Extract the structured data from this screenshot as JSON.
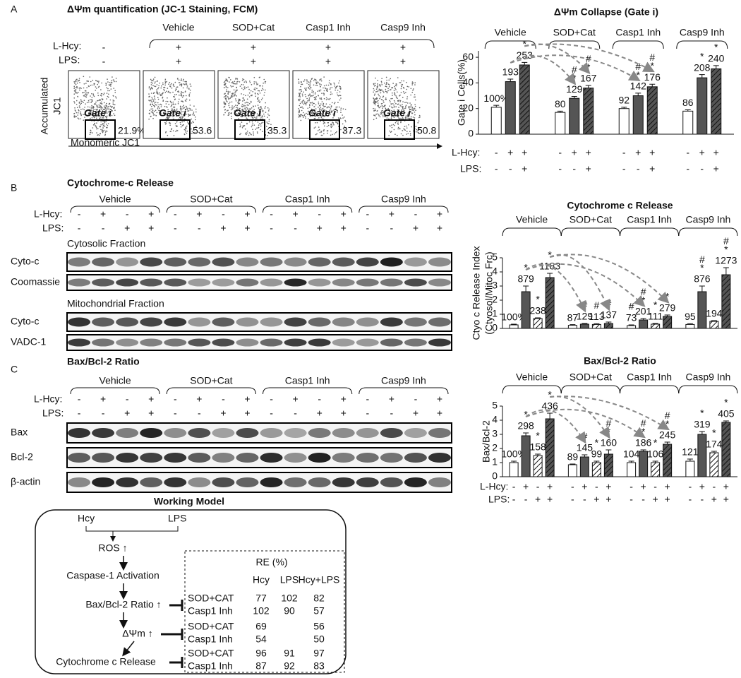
{
  "panel_a": {
    "letter": "A",
    "title": "ΔΨm quantification (JC-1 Staining, FCM)",
    "columns": [
      "Vehicle",
      "SOD+Cat",
      "Casp1 Inh",
      "Casp9 Inh"
    ],
    "row_labels": [
      "L-Hcy:",
      "LPS:"
    ],
    "hcy": [
      "-",
      "+",
      "+",
      "+",
      "+"
    ],
    "lps": [
      "-",
      "+",
      "+",
      "+",
      "+"
    ],
    "gate_label": "Gate i",
    "gate_percent": [
      "21.9%",
      "53.6",
      "35.3",
      "37.3",
      "50.8"
    ],
    "y_label": [
      "Accumulated",
      "JC1"
    ],
    "x_label": "Monomeric JC1"
  },
  "panel_b": {
    "letter": "B",
    "title": "Cytochrome-c Release",
    "groups": [
      "Vehicle",
      "SOD+Cat",
      "Casp1 Inh",
      "Casp9 Inh"
    ],
    "row_labels": [
      "L-Hcy:",
      "LPS:"
    ],
    "hcy": [
      "-",
      "+",
      "-",
      "+",
      "-",
      "+",
      "-",
      "+",
      "-",
      "+",
      "-",
      "+",
      "-",
      "+",
      "-",
      "+"
    ],
    "lps": [
      "-",
      "-",
      "+",
      "+",
      "-",
      "-",
      "+",
      "+",
      "-",
      "-",
      "+",
      "+",
      "-",
      "-",
      "+",
      "+"
    ],
    "sections": [
      {
        "title": "Cytosolic Fraction",
        "blots": [
          "Cyto-c",
          "Coomassie"
        ]
      },
      {
        "title": "Mitochondrial Fraction",
        "blots": [
          "Cyto-c",
          "VADC-1"
        ]
      }
    ]
  },
  "panel_c": {
    "letter": "C",
    "title": "Bax/Bcl-2 Ratio",
    "groups": [
      "Vehicle",
      "SOD+Cat",
      "Casp1 Inh",
      "Casp9 Inh"
    ],
    "row_labels": [
      "L-Hcy:",
      "LPS:"
    ],
    "hcy": [
      "-",
      "+",
      "-",
      "+",
      "-",
      "+",
      "-",
      "+",
      "-",
      "+",
      "-",
      "+",
      "-",
      "+",
      "-",
      "+"
    ],
    "lps": [
      "-",
      "-",
      "+",
      "+",
      "-",
      "-",
      "+",
      "+",
      "-",
      "-",
      "+",
      "+",
      "-",
      "-",
      "+",
      "+"
    ],
    "blots": [
      "Bax",
      "Bcl-2",
      "β-actin"
    ]
  },
  "model": {
    "title": "Working Model",
    "inputs": [
      "Hcy",
      "LPS"
    ],
    "steps": [
      "ROS ↑",
      "Caspase-1 Activation",
      "Bax/Bcl-2 Ratio ↑",
      "ΔΨm ↑",
      "Cytochrome c Release"
    ],
    "table": {
      "title": "RE (%)",
      "columns": [
        "Hcy",
        "LPS",
        "Hcy+LPS"
      ],
      "rows": [
        [
          "SOD+CAT",
          77,
          102,
          82
        ],
        [
          "Casp1 Inh",
          102,
          90,
          57
        ],
        [
          "SOD+CAT",
          69,
          null,
          56
        ],
        [
          "Casp1 Inh",
          54,
          null,
          50
        ],
        [
          "SOD+CAT",
          96,
          91,
          97
        ],
        [
          "Casp1 Inh",
          87,
          92,
          83
        ]
      ]
    }
  },
  "chart_data": [
    {
      "type": "bar",
      "title": "ΔΨm Collapse (Gate i)",
      "y_label": [
        "Gate i Cells(%)"
      ],
      "categories": [
        "Vehicle",
        "SOD+Cat",
        "Casp1 Inh",
        "Casp9 Inh"
      ],
      "row_labels": [
        "L-Hcy:",
        "LPS:"
      ],
      "ylim": [
        0,
        65
      ],
      "yticks": [
        0,
        20,
        40,
        60
      ],
      "series": [
        {
          "hcy": "-",
          "lps": "-",
          "color": "#ffffff",
          "hatch": false,
          "values": [
            21,
            17,
            20,
            18
          ],
          "errors": [
            1.5,
            1,
            1,
            1
          ],
          "labels": [
            "100%",
            "80",
            "92",
            "86"
          ],
          "significance": [
            null,
            null,
            null,
            null
          ]
        },
        {
          "hcy": "+",
          "lps": "-",
          "color": "#555555",
          "hatch": false,
          "values": [
            41,
            28,
            30,
            44
          ],
          "errors": [
            2,
            1.5,
            2,
            2.5
          ],
          "labels": [
            "193",
            "129",
            "142",
            "208"
          ],
          "significance": [
            null,
            "#*",
            "#*",
            "*"
          ]
        },
        {
          "hcy": "+",
          "lps": "+",
          "color": "#555555",
          "hatch": true,
          "values": [
            54,
            36,
            37,
            51
          ],
          "errors": [
            2,
            2,
            2,
            2.5
          ],
          "labels": [
            "253",
            "167",
            "176",
            "240"
          ],
          "significance": [
            "*",
            "#*",
            "#*",
            "*"
          ]
        }
      ]
    },
    {
      "type": "bar",
      "title": "Cytochrome c Release",
      "y_label": [
        "Ctyo c Release Index",
        "(Ctyosol/Mitoc Frc)"
      ],
      "categories": [
        "Vehicle",
        "SOD+Cat",
        "Casp1 Inh",
        "Casp9 Inh"
      ],
      "ylim": [
        0,
        5
      ],
      "yticks": [
        0,
        1,
        2,
        3,
        4,
        5
      ],
      "series": [
        {
          "color": "#ffffff",
          "hatch": false,
          "values": [
            0.25,
            0.22,
            0.2,
            0.28
          ],
          "errors": [
            0.05,
            0.05,
            0.05,
            0.05
          ],
          "labels": [
            "100%",
            "87",
            "73",
            "95"
          ],
          "significance": [
            null,
            null,
            "#",
            null
          ]
        },
        {
          "color": "#555555",
          "hatch": false,
          "values": [
            2.6,
            0.3,
            0.6,
            2.6
          ],
          "errors": [
            0.4,
            0.05,
            0.1,
            0.4
          ],
          "labels": [
            "879",
            "129",
            "201",
            "876"
          ],
          "significance": [
            "*",
            "#",
            "#*",
            "#*"
          ]
        },
        {
          "color": "#ffffff",
          "hatch": true,
          "values": [
            0.7,
            0.28,
            0.3,
            0.5
          ],
          "errors": [
            0.05,
            0.05,
            0.05,
            0.05
          ],
          "labels": [
            "238",
            "113",
            "111",
            "194"
          ],
          "significance": [
            "*",
            "#",
            "*",
            null
          ]
        },
        {
          "color": "#555555",
          "hatch": true,
          "values": [
            3.6,
            0.35,
            0.85,
            3.8
          ],
          "errors": [
            0.3,
            0.1,
            0.1,
            0.5
          ],
          "labels": [
            "1183",
            "137",
            "279",
            "1273"
          ],
          "significance": [
            "*",
            "#",
            "*",
            "#*"
          ]
        }
      ]
    },
    {
      "type": "bar",
      "title": "Bax/Bcl-2 Ratio",
      "y_label": [
        "Bax/Bcl-2"
      ],
      "categories": [
        "Vehicle",
        "SOD+Cat",
        "Casp1 Inh",
        "Casp9 Inh"
      ],
      "row_labels": [
        "L-Hcy:",
        "LPS:"
      ],
      "ylim": [
        0,
        5
      ],
      "yticks": [
        0,
        1,
        2,
        3,
        4,
        5
      ],
      "series": [
        {
          "hcy": "-",
          "lps": "-",
          "color": "#ffffff",
          "hatch": false,
          "values": [
            1.0,
            0.85,
            1.0,
            1.1
          ],
          "errors": [
            0.1,
            0.05,
            0.1,
            0.15
          ],
          "labels": [
            "100%",
            "89",
            "104",
            "121"
          ],
          "significance": [
            null,
            null,
            null,
            null
          ]
        },
        {
          "hcy": "+",
          "lps": "-",
          "color": "#555555",
          "hatch": false,
          "values": [
            2.9,
            1.4,
            1.8,
            3.0
          ],
          "errors": [
            0.2,
            0.15,
            0.1,
            0.2
          ],
          "labels": [
            "298",
            "145",
            "186",
            "319"
          ],
          "significance": [
            "*",
            "#",
            "#*",
            "*"
          ]
        },
        {
          "hcy": "-",
          "lps": "+",
          "color": "#ffffff",
          "hatch": true,
          "values": [
            1.5,
            1.0,
            1.0,
            1.7
          ],
          "errors": [
            0.1,
            0.1,
            0.1,
            0.1
          ],
          "labels": [
            "158",
            "99",
            "106",
            "174"
          ],
          "significance": [
            "*",
            "*",
            "*",
            "*"
          ]
        },
        {
          "hcy": "+",
          "lps": "+",
          "color": "#555555",
          "hatch": true,
          "values": [
            4.1,
            1.6,
            2.3,
            3.85
          ],
          "errors": [
            0.4,
            0.3,
            0.15,
            0.1
          ],
          "labels": [
            "436",
            "160",
            "245",
            "405"
          ],
          "significance": [
            "*",
            "#*",
            "#*",
            "*"
          ]
        }
      ]
    }
  ]
}
